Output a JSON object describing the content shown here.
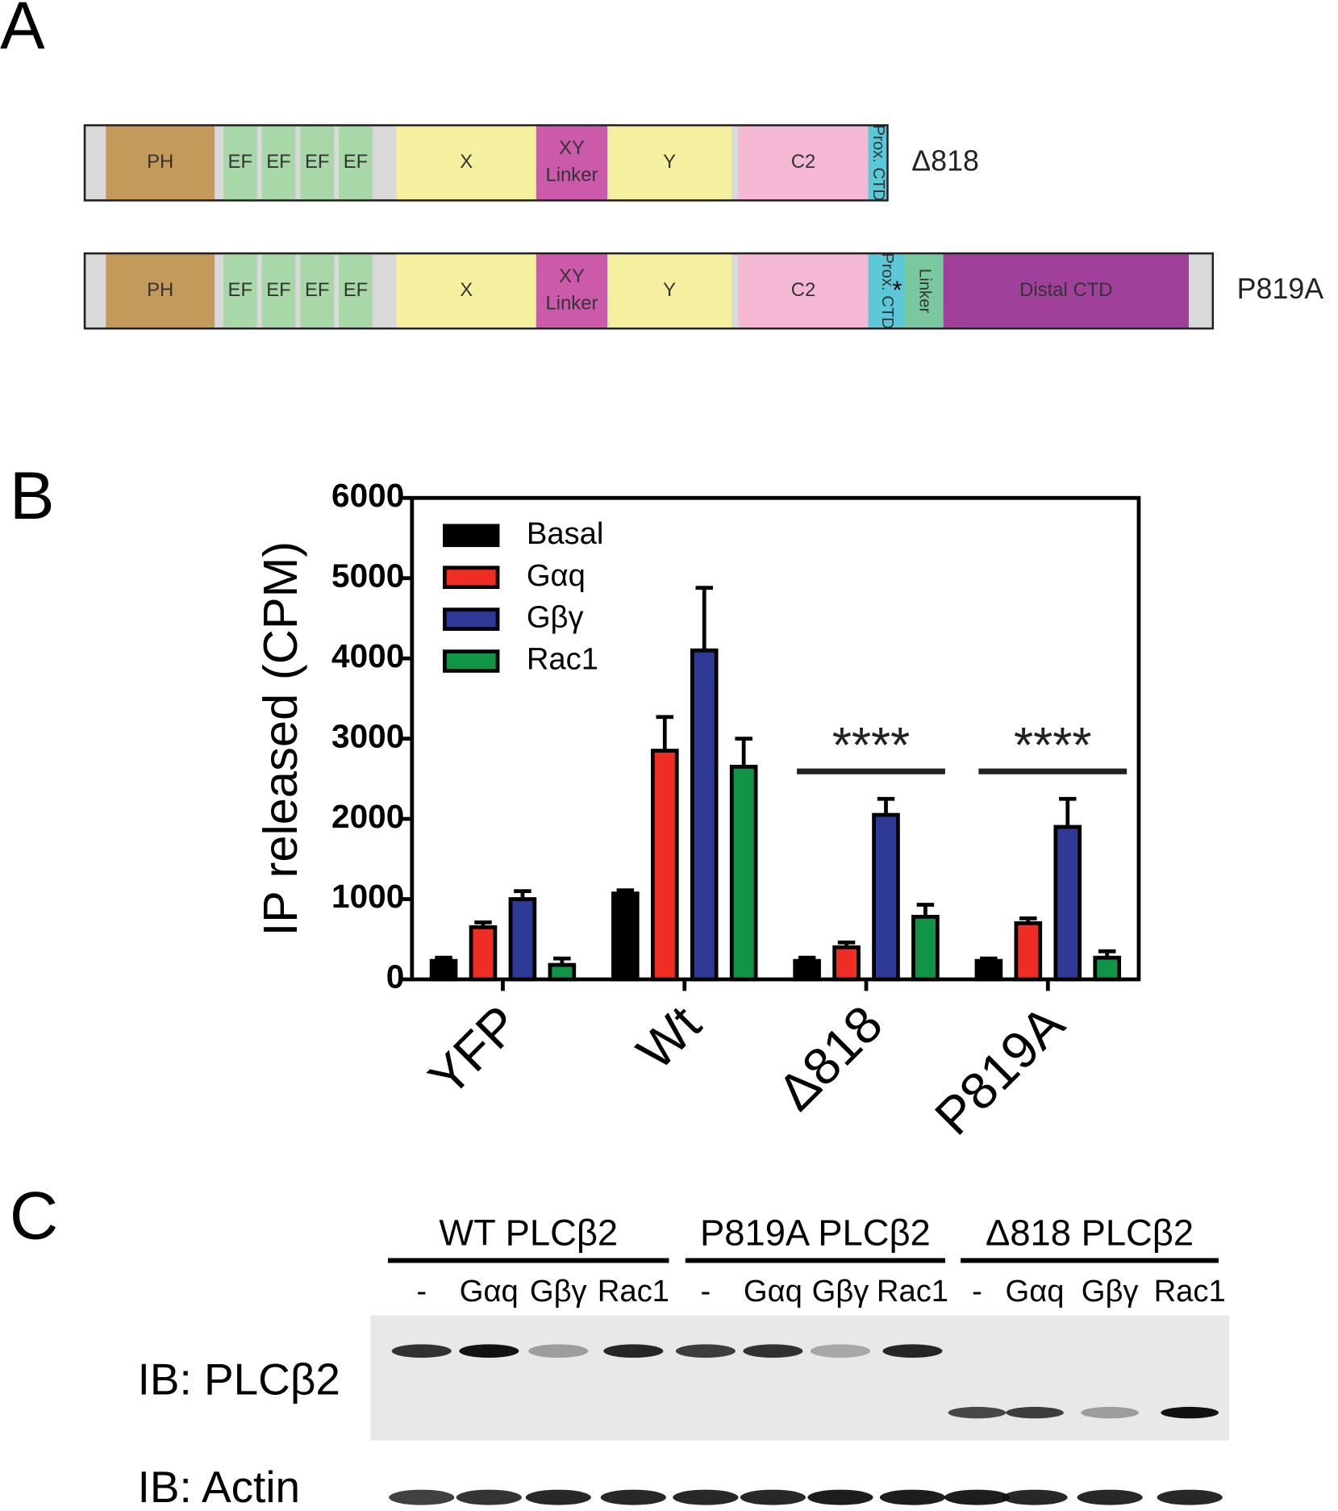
{
  "panel_a": {
    "label": "A",
    "rows": [
      {
        "name": "Δ818",
        "domains": [
          "PH",
          "EF",
          "EF",
          "EF",
          "EF",
          "X",
          "XY Linker",
          "Y",
          "C2",
          "Prox. CTD"
        ]
      },
      {
        "name": "P819A",
        "domains": [
          "PH",
          "EF",
          "EF",
          "EF",
          "EF",
          "X",
          "XY Linker",
          "Y",
          "C2",
          "Prox. CTD",
          "Linker",
          "Distal CTD"
        ],
        "mark": "*"
      }
    ]
  },
  "chart_data": {
    "type": "bar",
    "panel_label": "B",
    "y_label": "IP released (CPM)",
    "categories": [
      "YFP",
      "Wt",
      "Δ818",
      "P819A"
    ],
    "series": [
      {
        "name": "Basal",
        "color": "#000000",
        "values": [
          230,
          1070,
          230,
          230
        ],
        "errors": [
          40,
          40,
          40,
          30
        ]
      },
      {
        "name": "Gαq",
        "color": "#ee2e24",
        "values": [
          650,
          2850,
          400,
          700
        ],
        "errors": [
          60,
          420,
          60,
          60
        ]
      },
      {
        "name": "Gβγ",
        "color": "#2e3a96",
        "values": [
          1000,
          4100,
          2050,
          1900
        ],
        "errors": [
          100,
          780,
          200,
          350
        ]
      },
      {
        "name": "Rac1",
        "color": "#119447",
        "values": [
          180,
          2650,
          780,
          270
        ],
        "errors": [
          80,
          350,
          150,
          80
        ]
      }
    ],
    "ylim": [
      0,
      6000
    ],
    "yticks": [
      0,
      1000,
      2000,
      3000,
      4000,
      5000,
      6000
    ],
    "legend": "top-left",
    "annotations": [
      "****",
      "****"
    ]
  },
  "panel_c": {
    "label": "C",
    "groups": [
      "WT PLCβ2",
      "P819A PLCβ2",
      "Δ818 PLCβ2"
    ],
    "lanes": [
      "-",
      "Gαq",
      "Gβγ",
      "Rac1"
    ],
    "blots": [
      "IB: PLCβ2",
      "IB: Actin"
    ]
  }
}
